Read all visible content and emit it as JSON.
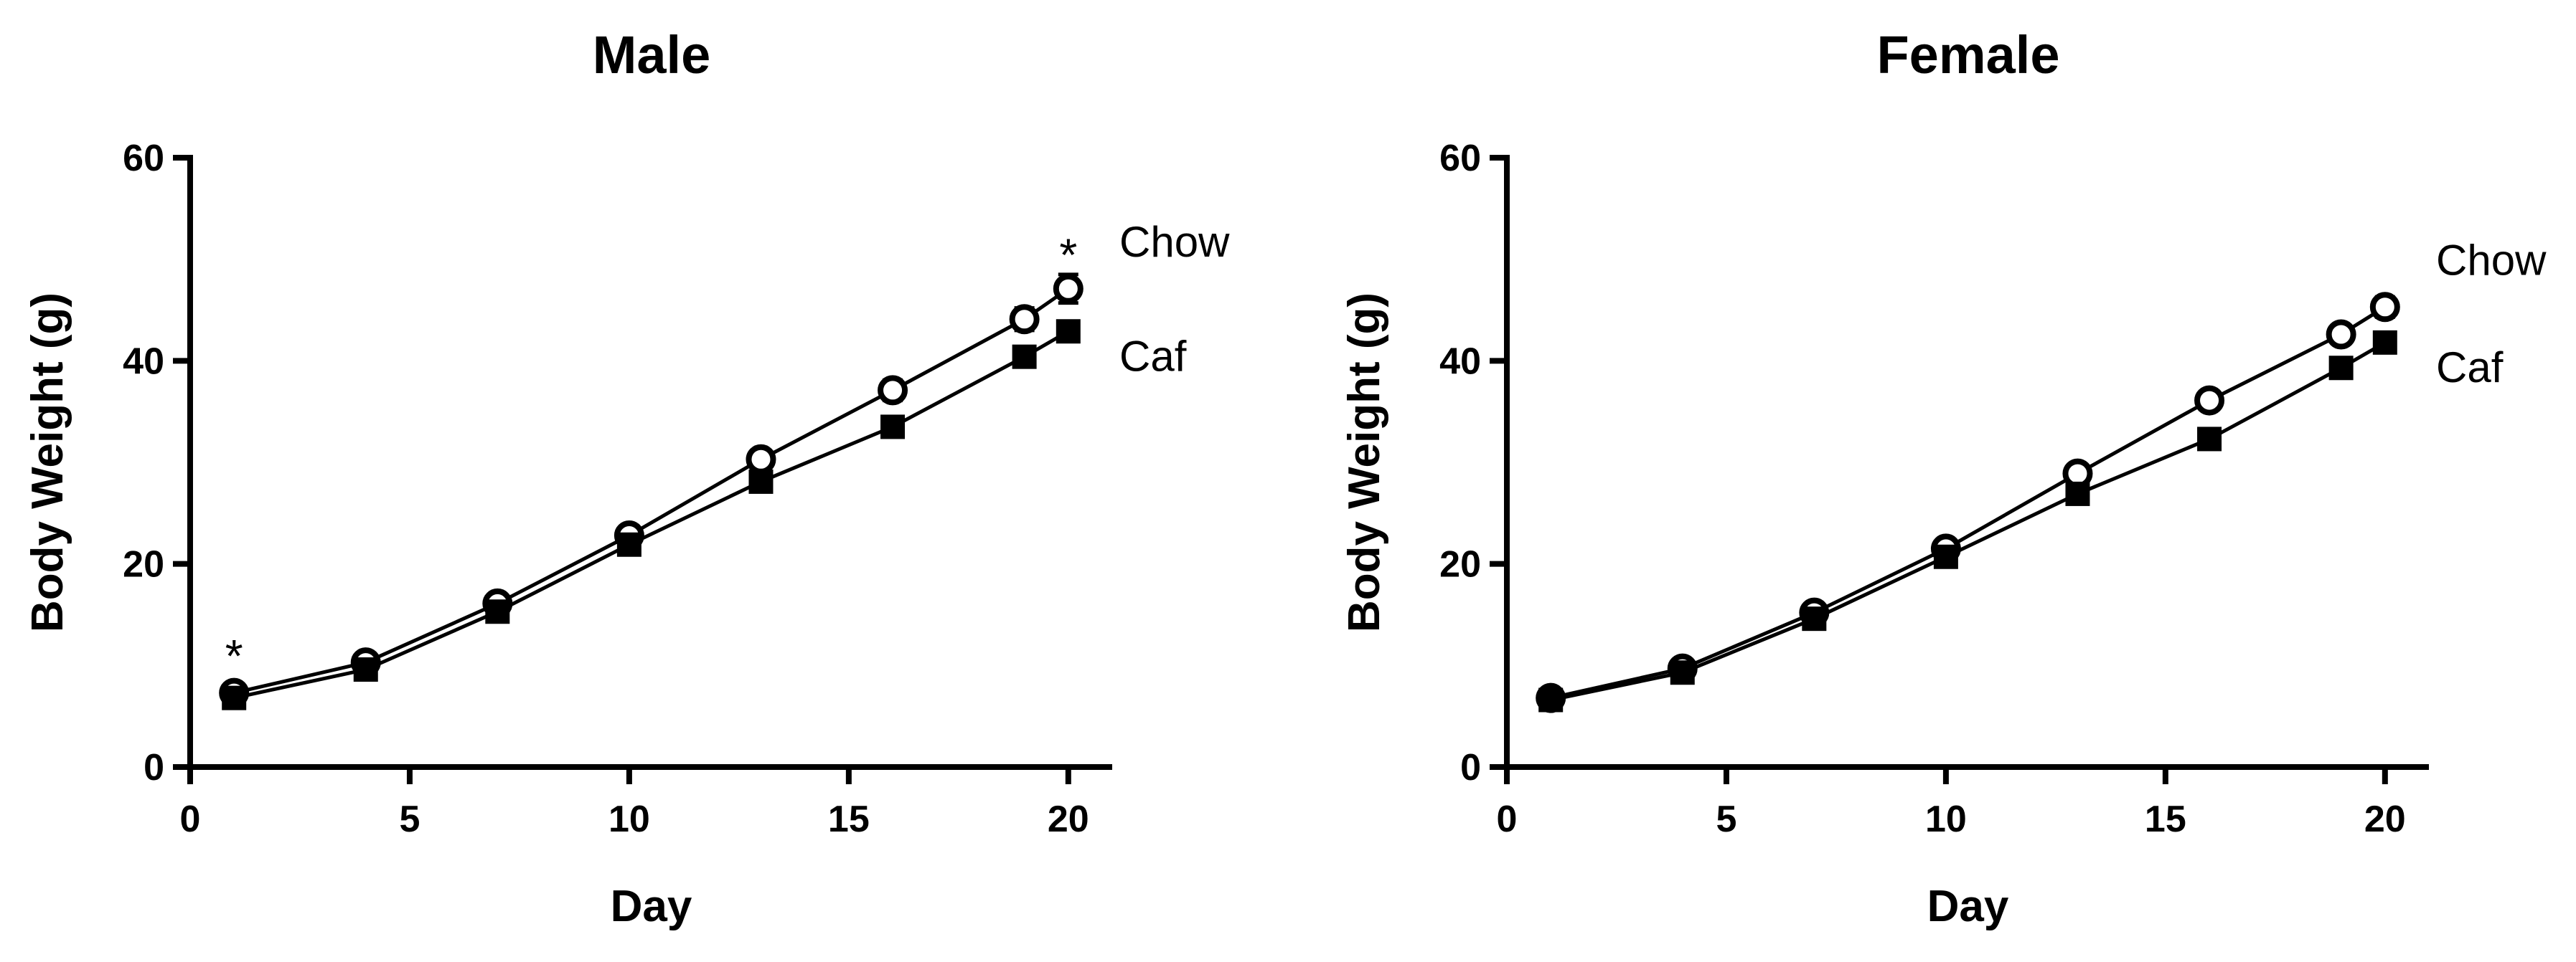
{
  "chart_data": [
    {
      "type": "line",
      "title": "Male",
      "xlabel": "Day",
      "ylabel": "Body Weight (g)",
      "xlim": [
        0,
        21
      ],
      "ylim": [
        0,
        60
      ],
      "x_ticks": [
        0,
        5,
        10,
        15,
        20
      ],
      "y_ticks": [
        0,
        20,
        40,
        60
      ],
      "grid": false,
      "x": [
        1,
        4,
        7,
        10,
        13,
        16,
        19,
        20
      ],
      "series": [
        {
          "name": "Chow",
          "marker": "open-circle",
          "values": [
            7.3,
            10.3,
            16.1,
            22.8,
            30.3,
            37.1,
            44.1,
            47.1
          ],
          "errors": [
            0.5,
            0.5,
            0.6,
            0.7,
            0.9,
            1.0,
            1.1,
            1.4
          ]
        },
        {
          "name": "Caf",
          "marker": "filled-square",
          "values": [
            6.8,
            9.6,
            15.3,
            21.9,
            28.1,
            33.5,
            40.4,
            42.9
          ],
          "errors": [
            0.4,
            0.4,
            0.5,
            0.6,
            0.7,
            0.8,
            0.9,
            1.0
          ]
        }
      ],
      "annotations": [
        {
          "text": "*",
          "x": 1,
          "y": 11.5
        },
        {
          "text": "*",
          "x": 20,
          "y": 51
        }
      ]
    },
    {
      "type": "line",
      "title": "Female",
      "xlabel": "Day",
      "ylabel": "Body Weight (g)",
      "xlim": [
        0,
        21
      ],
      "ylim": [
        0,
        60
      ],
      "x_ticks": [
        0,
        5,
        10,
        15,
        20
      ],
      "y_ticks": [
        0,
        20,
        40,
        60
      ],
      "grid": false,
      "x": [
        1,
        4,
        7,
        10,
        13,
        16,
        19,
        20
      ],
      "series": [
        {
          "name": "Chow",
          "marker": "open-circle",
          "values": [
            6.8,
            9.7,
            15.2,
            21.5,
            28.9,
            36.1,
            42.6,
            45.3
          ],
          "errors": [
            0.4,
            0.4,
            0.5,
            0.6,
            0.7,
            0.8,
            0.9,
            1.0
          ]
        },
        {
          "name": "Caf",
          "marker": "filled-square",
          "values": [
            6.6,
            9.3,
            14.6,
            20.7,
            26.9,
            32.3,
            39.3,
            41.8
          ],
          "errors": [
            0.4,
            0.4,
            0.5,
            0.6,
            0.6,
            0.7,
            0.8,
            0.9
          ]
        }
      ],
      "annotations": []
    }
  ]
}
